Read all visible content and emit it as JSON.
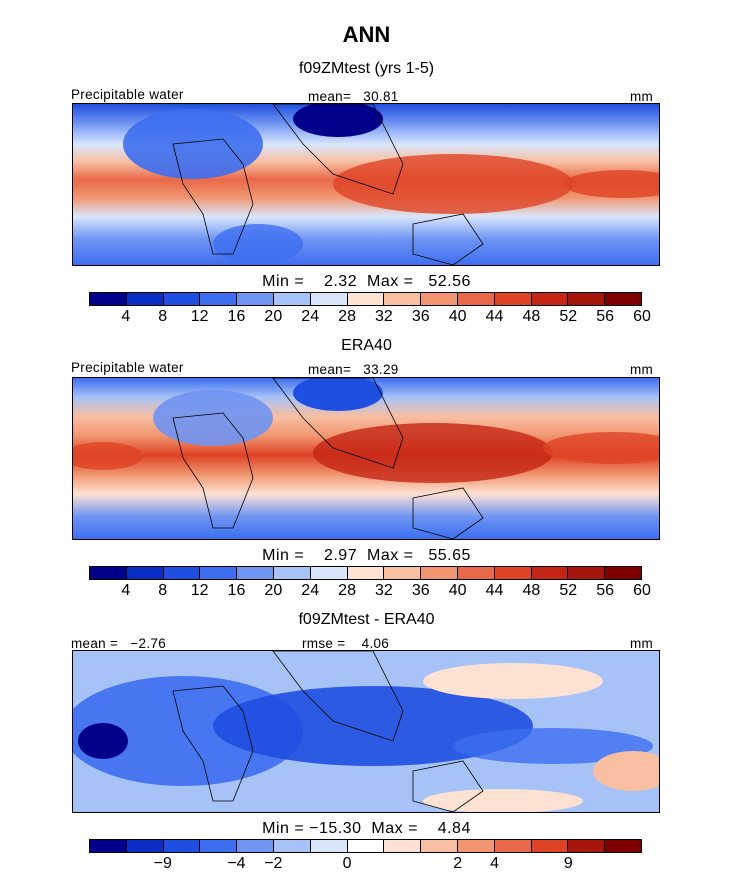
{
  "figure": {
    "title": "ANN"
  },
  "colors": {
    "model_scale": [
      "#00008b",
      "#0a2ec4",
      "#1f4fe0",
      "#3d6ef0",
      "#6f94f2",
      "#a7c2f6",
      "#d8e6fb",
      "#fde2d3",
      "#f8bfa2",
      "#f19671",
      "#e8694a",
      "#de4325",
      "#c42514",
      "#a8170d",
      "#7f0000"
    ],
    "diff_scale": [
      "#00008b",
      "#0a2ec4",
      "#1f4fe0",
      "#3d6ef0",
      "#6f94f2",
      "#a7c2f6",
      "#d8e6fb",
      "#ffffff",
      "#fde2d3",
      "#f8bfa2",
      "#f19671",
      "#e8694a",
      "#de4325",
      "#a8170d",
      "#7f0000"
    ]
  },
  "panels": [
    {
      "title": "f09ZMtest (yrs 1-5)",
      "variable": "Precipitable water",
      "mean_text": "mean=   30.81",
      "units": "mm",
      "stats_text": "Min =    2.32  Max =   52.56",
      "colorbar_labels": [
        "4",
        "8",
        "12",
        "16",
        "20",
        "24",
        "28",
        "32",
        "36",
        "40",
        "44",
        "48",
        "52",
        "56",
        "60"
      ]
    },
    {
      "title": "ERA40",
      "variable": "Precipitable water",
      "mean_text": "mean=   33.29",
      "units": "mm",
      "stats_text": "Min =    2.97  Max =   55.65",
      "colorbar_labels": [
        "4",
        "8",
        "12",
        "16",
        "20",
        "24",
        "28",
        "32",
        "36",
        "40",
        "44",
        "48",
        "52",
        "56",
        "60"
      ]
    },
    {
      "title": "f09ZMtest - ERA40",
      "mean_text": "mean =   −2.76",
      "rmse_text": "rmse =    4.06",
      "units": "mm",
      "stats_text": "Min = −15.30  Max =    4.84",
      "colorbar_labels": [
        "−9",
        "−4",
        "−2",
        "0",
        "2",
        "4",
        "9"
      ]
    }
  ]
}
